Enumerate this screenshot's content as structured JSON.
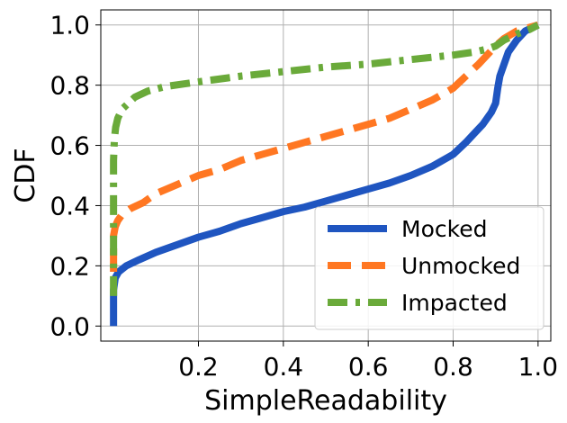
{
  "chart_data": {
    "type": "line",
    "title": "",
    "xlabel": "SimpleReadability",
    "ylabel": "CDF",
    "xlim": [
      -0.03,
      1.03
    ],
    "ylim": [
      -0.05,
      1.05
    ],
    "x_ticks": [
      0.2,
      0.4,
      0.6,
      0.8,
      1.0
    ],
    "x_tick_labels": [
      "0.2",
      "0.4",
      "0.6",
      "0.8",
      "1.0"
    ],
    "y_ticks": [
      0.0,
      0.2,
      0.4,
      0.6,
      0.8,
      1.0
    ],
    "y_tick_labels": [
      "0.0",
      "0.2",
      "0.4",
      "0.6",
      "0.8",
      "1.0"
    ],
    "grid": true,
    "legend_position": "lower-right",
    "series": [
      {
        "name": "Mocked",
        "color": "#1f55c0",
        "style": "solid",
        "x": [
          0.0,
          0.0,
          0.004,
          0.012,
          0.03,
          0.06,
          0.1,
          0.15,
          0.2,
          0.25,
          0.3,
          0.35,
          0.4,
          0.45,
          0.5,
          0.55,
          0.6,
          0.65,
          0.7,
          0.75,
          0.8,
          0.83,
          0.85,
          0.87,
          0.89,
          0.9,
          0.905,
          0.91,
          0.92,
          0.93,
          0.95,
          0.97,
          1.0
        ],
        "y": [
          0.0,
          0.12,
          0.16,
          0.18,
          0.2,
          0.22,
          0.245,
          0.27,
          0.295,
          0.315,
          0.34,
          0.36,
          0.38,
          0.395,
          0.415,
          0.435,
          0.455,
          0.475,
          0.5,
          0.53,
          0.57,
          0.61,
          0.64,
          0.67,
          0.71,
          0.74,
          0.79,
          0.83,
          0.87,
          0.91,
          0.95,
          0.98,
          1.0
        ]
      },
      {
        "name": "Unmocked",
        "color": "#ff7722",
        "style": "dashed",
        "x": [
          0.0,
          0.0,
          0.004,
          0.01,
          0.02,
          0.04,
          0.07,
          0.1,
          0.15,
          0.2,
          0.25,
          0.3,
          0.35,
          0.4,
          0.45,
          0.5,
          0.55,
          0.6,
          0.65,
          0.7,
          0.75,
          0.8,
          0.83,
          0.86,
          0.88,
          0.9,
          0.92,
          0.95,
          1.0
        ],
        "y": [
          0.18,
          0.3,
          0.33,
          0.35,
          0.37,
          0.39,
          0.41,
          0.44,
          0.47,
          0.5,
          0.52,
          0.55,
          0.57,
          0.59,
          0.61,
          0.63,
          0.65,
          0.67,
          0.69,
          0.72,
          0.75,
          0.79,
          0.83,
          0.87,
          0.9,
          0.93,
          0.955,
          0.98,
          1.0
        ]
      },
      {
        "name": "Impacted",
        "color": "#6aaa3a",
        "style": "dashdot",
        "x": [
          0.0,
          0.0,
          0.002,
          0.005,
          0.01,
          0.02,
          0.035,
          0.05,
          0.08,
          0.12,
          0.17,
          0.22,
          0.3,
          0.4,
          0.5,
          0.6,
          0.7,
          0.8,
          0.85,
          0.88,
          0.9,
          0.92,
          0.95,
          0.98,
          1.0
        ],
        "y": [
          0.1,
          0.55,
          0.62,
          0.66,
          0.69,
          0.72,
          0.74,
          0.76,
          0.78,
          0.795,
          0.805,
          0.815,
          0.83,
          0.845,
          0.86,
          0.87,
          0.885,
          0.9,
          0.91,
          0.92,
          0.93,
          0.95,
          0.97,
          0.985,
          1.0
        ]
      }
    ]
  }
}
